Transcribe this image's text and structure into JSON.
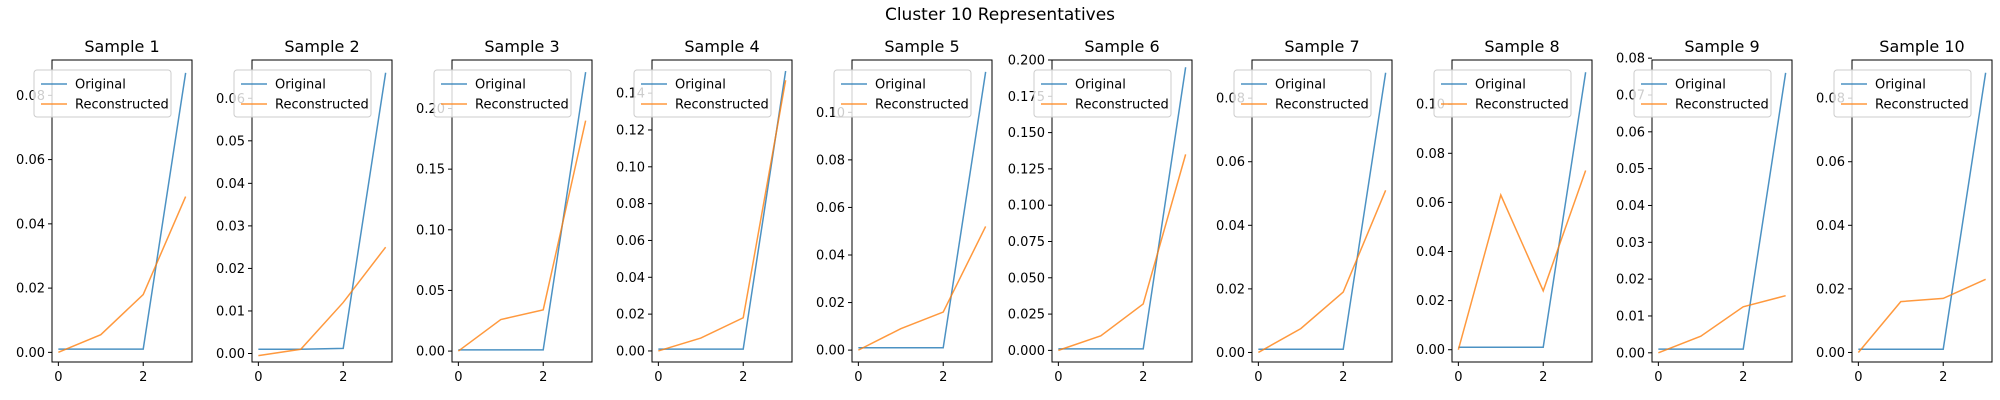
{
  "figure": {
    "title": "Cluster 10 Representatives"
  },
  "colors": {
    "original": "#1f77b4",
    "reconstructed": "#ff7f0e",
    "axes": "#000000",
    "legend_border": "#cccccc"
  },
  "chart_data": [
    {
      "type": "line",
      "title": "Sample 1",
      "x": [
        0,
        1,
        2,
        3
      ],
      "xticks": [
        0,
        2
      ],
      "ylim": [
        -0.003,
        0.091
      ],
      "yticks": [
        0.0,
        0.02,
        0.04,
        0.06,
        0.08
      ],
      "ytick_labels": [
        "0.00",
        "0.02",
        "0.04",
        "0.06",
        "0.08"
      ],
      "legend_loc": "upper-left",
      "series": [
        {
          "name": "Original",
          "values": [
            0.001,
            0.001,
            0.001,
            0.087
          ]
        },
        {
          "name": "Reconstructed",
          "values": [
            0.0,
            0.0055,
            0.018,
            0.0485
          ]
        }
      ]
    },
    {
      "type": "line",
      "title": "Sample 2",
      "x": [
        0,
        1,
        2,
        3
      ],
      "xticks": [
        0,
        2
      ],
      "ylim": [
        -0.002,
        0.069
      ],
      "yticks": [
        0.0,
        0.01,
        0.02,
        0.03,
        0.04,
        0.05,
        0.06
      ],
      "ytick_labels": [
        "0.00",
        "0.01",
        "0.02",
        "0.03",
        "0.04",
        "0.05",
        "0.06"
      ],
      "legend_loc": "upper-left",
      "series": [
        {
          "name": "Original",
          "values": [
            0.001,
            0.001,
            0.0012,
            0.066
          ]
        },
        {
          "name": "Reconstructed",
          "values": [
            -0.0005,
            0.001,
            0.012,
            0.025
          ]
        }
      ]
    },
    {
      "type": "line",
      "title": "Sample 3",
      "x": [
        0,
        1,
        2,
        3
      ],
      "xticks": [
        0,
        2
      ],
      "ylim": [
        -0.009,
        0.24
      ],
      "yticks": [
        0.0,
        0.05,
        0.1,
        0.15,
        0.2
      ],
      "ytick_labels": [
        "0.00",
        "0.05",
        "0.10",
        "0.15",
        "0.20"
      ],
      "legend_loc": "upper-left",
      "series": [
        {
          "name": "Original",
          "values": [
            0.001,
            0.001,
            0.001,
            0.23
          ]
        },
        {
          "name": "Reconstructed",
          "values": [
            0.0,
            0.026,
            0.034,
            0.19
          ]
        }
      ]
    },
    {
      "type": "line",
      "title": "Sample 4",
      "x": [
        0,
        1,
        2,
        3
      ],
      "xticks": [
        0,
        2
      ],
      "ylim": [
        -0.006,
        0.158
      ],
      "yticks": [
        0.0,
        0.02,
        0.04,
        0.06,
        0.08,
        0.1,
        0.12,
        0.14
      ],
      "ytick_labels": [
        "0.00",
        "0.02",
        "0.04",
        "0.06",
        "0.08",
        "0.10",
        "0.12",
        "0.14"
      ],
      "legend_loc": "upper-left",
      "series": [
        {
          "name": "Original",
          "values": [
            0.001,
            0.001,
            0.001,
            0.152
          ]
        },
        {
          "name": "Reconstructed",
          "values": [
            0.0,
            0.007,
            0.018,
            0.147
          ]
        }
      ]
    },
    {
      "type": "line",
      "title": "Sample 5",
      "x": [
        0,
        1,
        2,
        3
      ],
      "xticks": [
        0,
        2
      ],
      "ylim": [
        -0.005,
        0.122
      ],
      "yticks": [
        0.0,
        0.02,
        0.04,
        0.06,
        0.08,
        0.1
      ],
      "ytick_labels": [
        "0.00",
        "0.02",
        "0.04",
        "0.06",
        "0.08",
        "0.10"
      ],
      "legend_loc": "upper-left",
      "series": [
        {
          "name": "Original",
          "values": [
            0.001,
            0.001,
            0.001,
            0.117
          ]
        },
        {
          "name": "Reconstructed",
          "values": [
            0.0,
            0.009,
            0.016,
            0.052
          ]
        }
      ]
    },
    {
      "type": "line",
      "title": "Sample 6",
      "x": [
        0,
        1,
        2,
        3
      ],
      "xticks": [
        0,
        2
      ],
      "ylim": [
        -0.008,
        0.2
      ],
      "yticks": [
        0.0,
        0.025,
        0.05,
        0.075,
        0.1,
        0.125,
        0.15,
        0.175,
        0.2
      ],
      "ytick_labels": [
        "0.000",
        "0.025",
        "0.050",
        "0.075",
        "0.100",
        "0.125",
        "0.150",
        "0.175",
        "0.200"
      ],
      "legend_loc": "upper-left",
      "series": [
        {
          "name": "Original",
          "values": [
            0.001,
            0.001,
            0.001,
            0.195
          ]
        },
        {
          "name": "Reconstructed",
          "values": [
            0.0,
            0.01,
            0.032,
            0.135
          ]
        }
      ]
    },
    {
      "type": "line",
      "title": "Sample 7",
      "x": [
        0,
        1,
        2,
        3
      ],
      "xticks": [
        0,
        2
      ],
      "ylim": [
        -0.003,
        0.092
      ],
      "yticks": [
        0.0,
        0.02,
        0.04,
        0.06,
        0.08
      ],
      "ytick_labels": [
        "0.00",
        "0.02",
        "0.04",
        "0.06",
        "0.08"
      ],
      "legend_loc": "upper-left",
      "series": [
        {
          "name": "Original",
          "values": [
            0.001,
            0.001,
            0.001,
            0.088
          ]
        },
        {
          "name": "Reconstructed",
          "values": [
            0.0,
            0.0075,
            0.019,
            0.051
          ]
        }
      ]
    },
    {
      "type": "line",
      "title": "Sample 8",
      "x": [
        0,
        1,
        2,
        3
      ],
      "xticks": [
        0,
        2
      ],
      "ylim": [
        -0.005,
        0.118
      ],
      "yticks": [
        0.0,
        0.02,
        0.04,
        0.06,
        0.08,
        0.1
      ],
      "ytick_labels": [
        "0.00",
        "0.02",
        "0.04",
        "0.06",
        "0.08",
        "0.10"
      ],
      "legend_loc": "upper-left",
      "series": [
        {
          "name": "Original",
          "values": [
            0.001,
            0.001,
            0.001,
            0.113
          ]
        },
        {
          "name": "Reconstructed",
          "values": [
            0.0,
            0.063,
            0.024,
            0.073
          ]
        }
      ]
    },
    {
      "type": "line",
      "title": "Sample 9",
      "x": [
        0,
        1,
        2,
        3
      ],
      "xticks": [
        0,
        2
      ],
      "ylim": [
        -0.0025,
        0.0795
      ],
      "yticks": [
        0.0,
        0.01,
        0.02,
        0.03,
        0.04,
        0.05,
        0.06,
        0.07,
        0.08
      ],
      "ytick_labels": [
        "0.00",
        "0.01",
        "0.02",
        "0.03",
        "0.04",
        "0.05",
        "0.06",
        "0.07",
        "0.08"
      ],
      "legend_loc": "upper-left",
      "series": [
        {
          "name": "Original",
          "values": [
            0.001,
            0.001,
            0.001,
            0.076
          ]
        },
        {
          "name": "Reconstructed",
          "values": [
            0.0,
            0.0045,
            0.0125,
            0.0155
          ]
        }
      ]
    },
    {
      "type": "line",
      "title": "Sample 10",
      "x": [
        0,
        1,
        2,
        3
      ],
      "xticks": [
        0,
        2
      ],
      "ylim": [
        -0.003,
        0.092
      ],
      "yticks": [
        0.0,
        0.02,
        0.04,
        0.06,
        0.08
      ],
      "ytick_labels": [
        "0.00",
        "0.02",
        "0.04",
        "0.06",
        "0.08"
      ],
      "legend_loc": "upper-left",
      "series": [
        {
          "name": "Original",
          "values": [
            0.001,
            0.001,
            0.001,
            0.088
          ]
        },
        {
          "name": "Reconstructed",
          "values": [
            0.0,
            0.016,
            0.017,
            0.023
          ]
        }
      ]
    }
  ]
}
